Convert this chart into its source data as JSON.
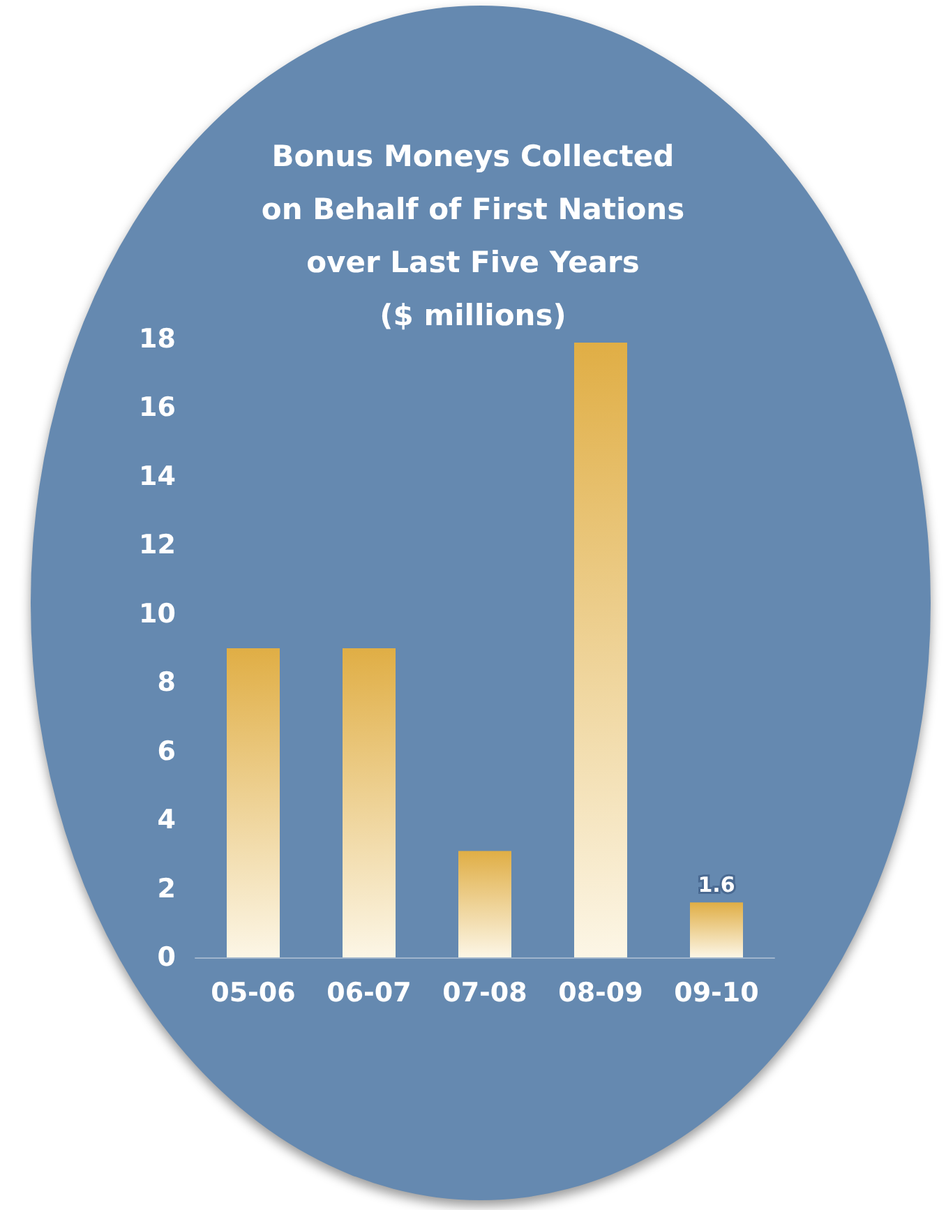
{
  "chart_data": {
    "type": "bar",
    "title": "Bonus Moneys Collected\non Behalf of First Nations\nover Last Five Years\n($ millions)",
    "categories": [
      "05-06",
      "06-07",
      "07-08",
      "08-09",
      "09-10"
    ],
    "values": [
      9.0,
      9.0,
      3.1,
      17.9,
      1.6
    ],
    "value_labels": [
      null,
      null,
      null,
      null,
      "1.6"
    ],
    "color": "#e0ae45",
    "ylim": [
      0,
      18
    ],
    "yticks": [
      0,
      2,
      4,
      6,
      8,
      10,
      12,
      14,
      16,
      18
    ],
    "grid": false
  }
}
